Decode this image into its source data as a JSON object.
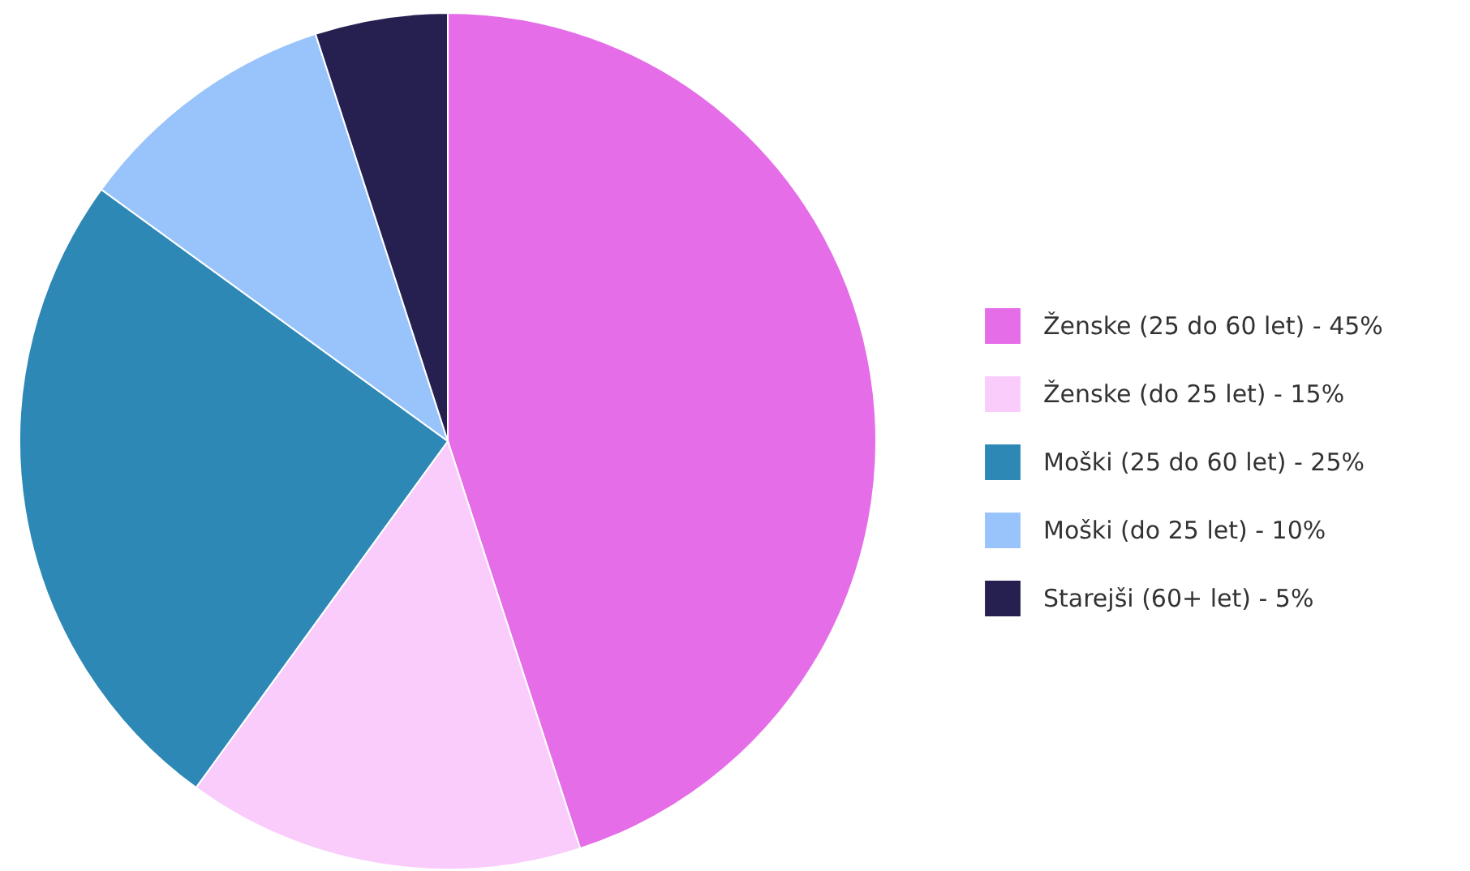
{
  "chart_data": {
    "type": "pie",
    "categories": [
      "Ženske (25 do 60 let) - 45%",
      "Ženske (do 25 let) - 15%",
      "Moški (25 do 60 let) - 25%",
      "Moški (do 25 let) - 10%",
      "Starejši (60+ let) - 5%"
    ],
    "values": [
      45,
      15,
      25,
      10,
      5
    ],
    "colors": [
      "#e56ee8",
      "#f9ccfb",
      "#2e88b5",
      "#98c4fb",
      "#262050"
    ],
    "legend": "right"
  }
}
